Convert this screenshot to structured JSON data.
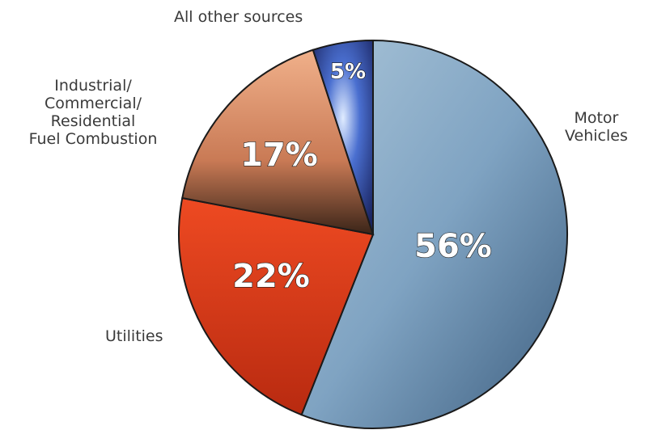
{
  "chart_data": {
    "type": "pie",
    "slices": [
      {
        "label": "Motor\nVehicles",
        "value": 56,
        "value_label": "56%",
        "color": "#6f97b8"
      },
      {
        "label": "Utilities",
        "value": 22,
        "value_label": "22%",
        "color": "#e0411c"
      },
      {
        "label": "Industrial/\nCommercial/\nResidential\nFuel Combustion",
        "value": 17,
        "value_label": "17%",
        "color": "#e8a07a"
      },
      {
        "label": "All other sources",
        "value": 5,
        "value_label": "5%",
        "color": "#2a3f8f"
      }
    ]
  }
}
